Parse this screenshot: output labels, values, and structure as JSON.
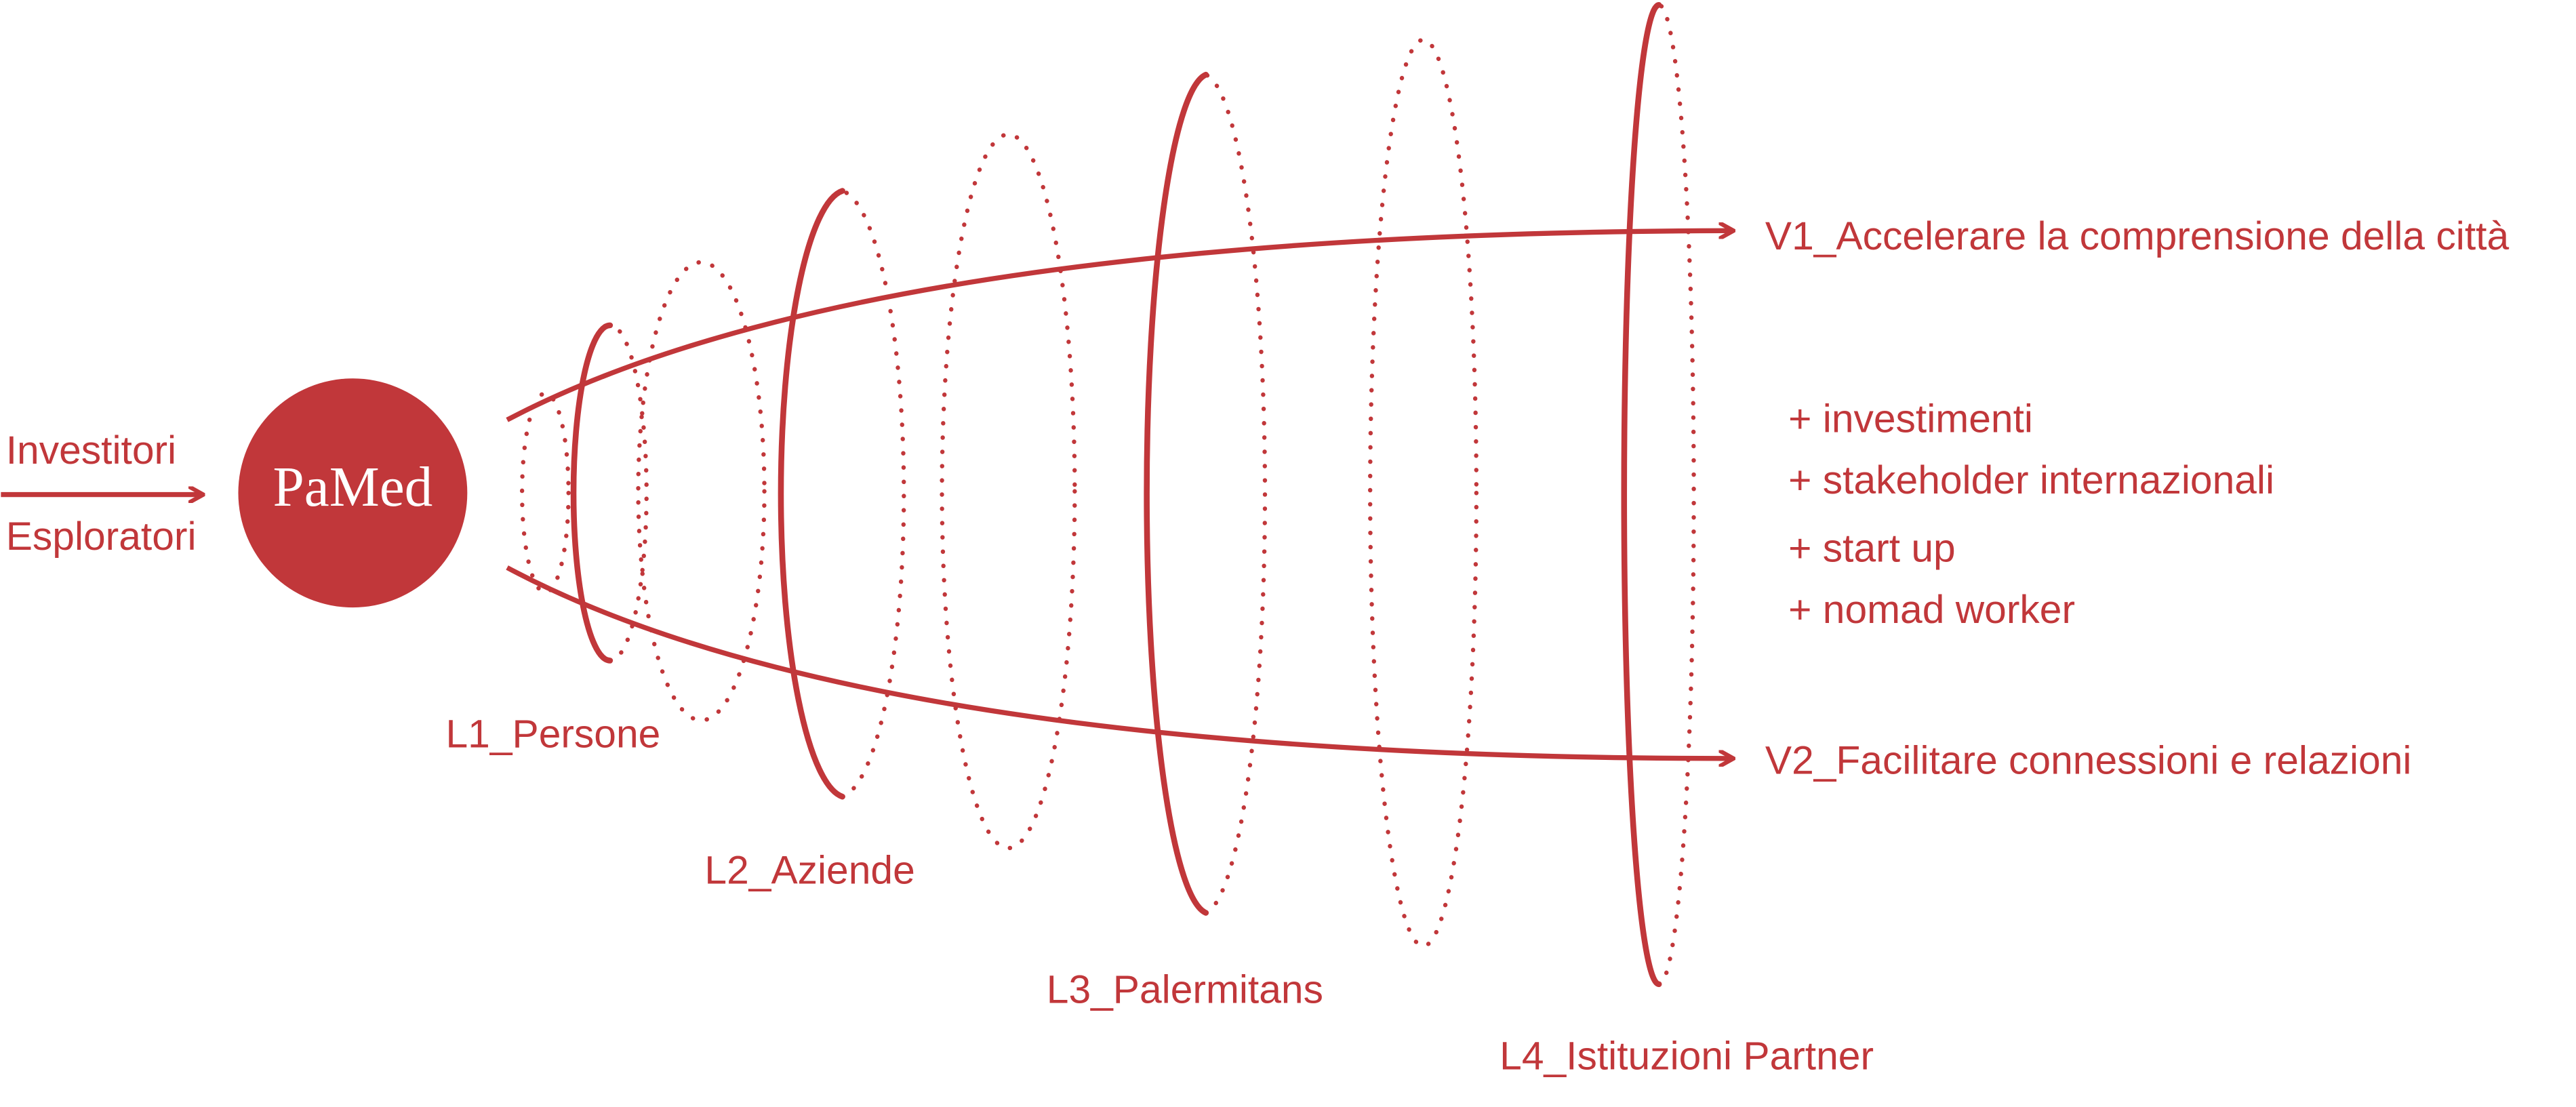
{
  "inputs": [
    "Investitori",
    "Esploratori"
  ],
  "logo": "PaMed",
  "layers": [
    "L1_Persone",
    "L2_Aziende",
    "L3_Palermitans",
    "L4_Istituzioni Partner"
  ],
  "outcomes": [
    "V1_Accelerare la comprensione della città",
    "V2_Facilitare connessioni e relazioni"
  ],
  "benefits": [
    "+ investimenti",
    "+ stakeholder internazionali",
    "+ start up",
    "+ nomad worker"
  ]
}
